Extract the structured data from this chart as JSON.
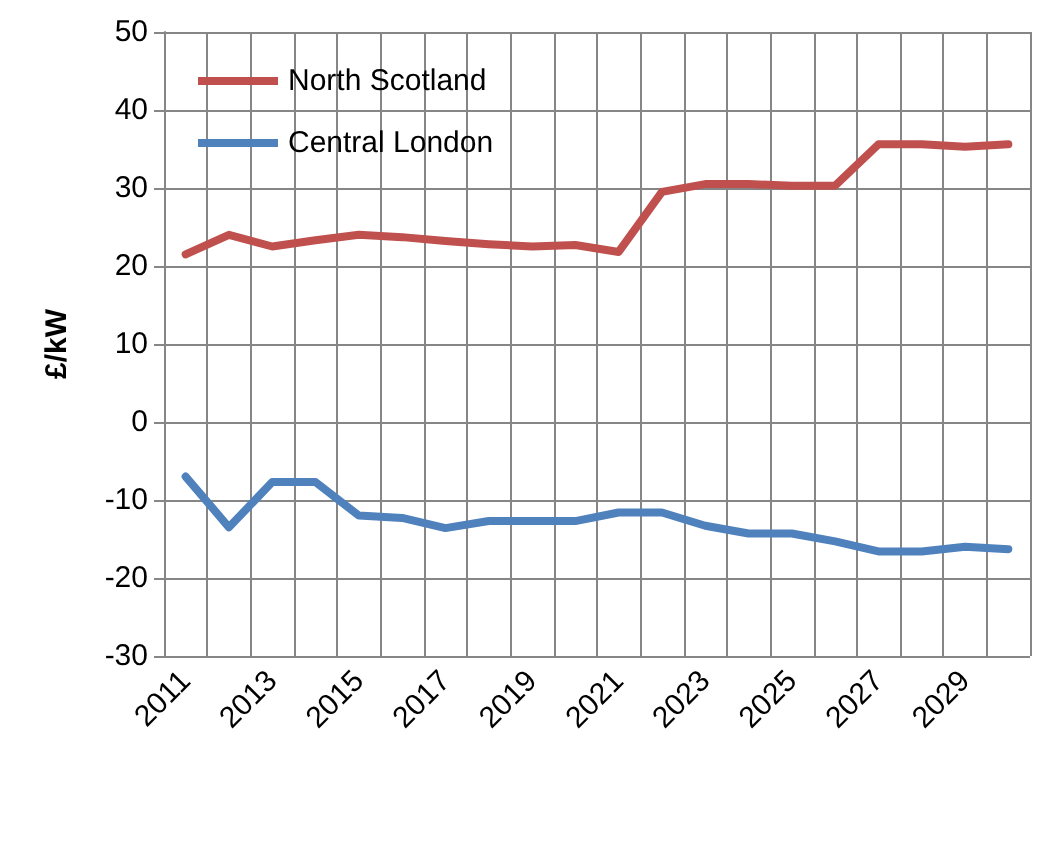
{
  "chart_data": {
    "type": "line",
    "ylabel": "£/kW",
    "categories": [
      "2011",
      null,
      "2013",
      null,
      "2015",
      null,
      "2017",
      null,
      "2019",
      null,
      "2021",
      null,
      "2023",
      null,
      "2025",
      null,
      "2027",
      null,
      "2029",
      null
    ],
    "series": [
      {
        "name": "North Scotland",
        "color": "#c0504d",
        "values": [
          21.5,
          24,
          22.5,
          23.3,
          24,
          23.7,
          23.2,
          22.8,
          22.5,
          22.7,
          21.8,
          29.5,
          30.5,
          30.5,
          30.3,
          30.3,
          35.6,
          35.6,
          35.3,
          35.6
        ]
      },
      {
        "name": "Central London",
        "color": "#4f81bd",
        "values": [
          -7,
          -13.5,
          -7.7,
          -7.7,
          -12,
          -12.3,
          -13.6,
          -12.7,
          -12.7,
          -12.7,
          -11.6,
          -11.6,
          -13.3,
          -14.3,
          -14.3,
          -15.3,
          -16.6,
          -16.6,
          -16,
          -16.3
        ]
      }
    ],
    "ylim": [
      -30,
      50
    ],
    "yticks": [
      -30,
      -20,
      -10,
      0,
      10,
      20,
      30,
      40,
      50
    ],
    "grid": true,
    "legend": "top left",
    "marker": "none",
    "line_style": "solid"
  }
}
